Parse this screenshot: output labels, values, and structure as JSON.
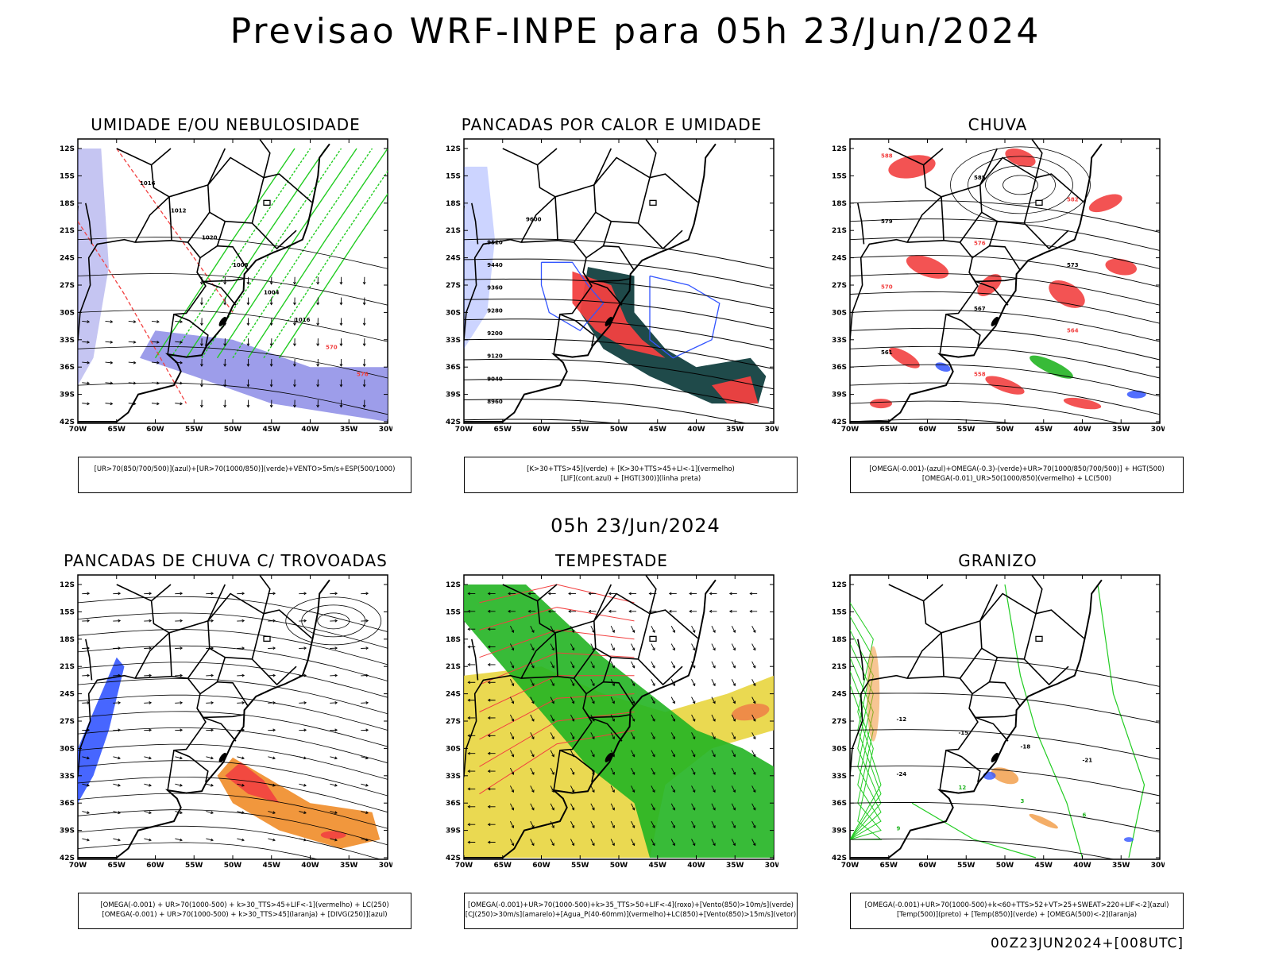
{
  "title": "Previsao WRF-INPE  para 05h 23/Jun/2024",
  "middle_date": "05h 23/Jun/2024",
  "footer": "00Z23JUN2024+[008UTC]",
  "axes": {
    "lat_labels": [
      "12S",
      "15S",
      "18S",
      "21S",
      "24S",
      "27S",
      "30S",
      "33S",
      "36S",
      "39S",
      "42S"
    ],
    "lon_labels": [
      "70W",
      "65W",
      "60W",
      "55W",
      "50W",
      "45W",
      "40W",
      "35W",
      "30W"
    ]
  },
  "colors": {
    "humidity_high": "#8c8ce6",
    "humidity_low": "#22cc22",
    "red": "#f24040",
    "dark_teal": "#1f4a4a",
    "blue": "#3355ff",
    "green_fill": "#22b422",
    "yellow_fill": "#e6d232",
    "orange": "#f08c28"
  },
  "panels": [
    {
      "title": "UMIDADE E/OU NEBULOSIDADE",
      "legend": [
        "[UR>70(850/700/500)](azul)+[UR>70(1000/850)](verde)+VENTO>5m/s+ESP(500/1000)"
      ],
      "labels": [
        "1016",
        "1012",
        "1020",
        "1008",
        "1004",
        "1016",
        "570",
        "576"
      ]
    },
    {
      "title": "PANCADAS POR CALOR E UMIDADE",
      "legend": [
        "[K>30+TTS>45](verde) + [K>30+TTS>45+LI<-1](vermelho)",
        "[LIF](cont.azul) + [HGT(300)](linha preta)"
      ],
      "labels": [
        "9600",
        "9520",
        "9440",
        "9360",
        "9280",
        "9200",
        "9120",
        "9040",
        "8960"
      ]
    },
    {
      "title": "CHUVA",
      "legend": [
        "[OMEGA(-0.001)-(azul)+OMEGA(-0.3)-(verde)+UR>70(1000/850/700/500)] + HGT(500)",
        "[OMEGA(-0.01)_UR>50(1000/850)(vermelho) + LC(500)"
      ],
      "labels": [
        "588",
        "585",
        "582",
        "579",
        "576",
        "573",
        "570",
        "567",
        "564",
        "561",
        "558"
      ]
    },
    {
      "title": "PANCADAS DE CHUVA C/ TROVOADAS",
      "legend": [
        "[OMEGA(-0.001) + UR>70(1000-500) + k>30_TTS>45+LIF<-1](vermelho) + LC(250)",
        "[OMEGA(-0.001) + UR>70(1000-500) + k>30_TTS>45](laranja) + [DIVG(250)](azul)"
      ],
      "labels": []
    },
    {
      "title": "TEMPESTADE",
      "legend": [
        "[OMEGA(-0.001)+UR>70(1000-500)+k>35_TTS>50+LIF<-4](roxo)+[Vento(850)>10m/s](verde)",
        "[CJ(250)>30m/s](amarelo)+[Agua_P(40-60mm)](vermelho)+LC(850)+[Vento(850)>15m/s](vetor)"
      ],
      "labels": []
    },
    {
      "title": "GRANIZO",
      "legend": [
        "[OMEGA(-0.001)+UR>70(1000-500)+k<60+TTS>52+VT>25+SWEAT>220+LIF<-2](azul)",
        "[Temp(500)](preto) + [Temp(850)](verde) + [OMEGA(500)<-2](laranja)"
      ],
      "labels": [
        "-12",
        "-15",
        "-18",
        "-21",
        "-24",
        "12",
        "3",
        "6",
        "9"
      ]
    }
  ]
}
